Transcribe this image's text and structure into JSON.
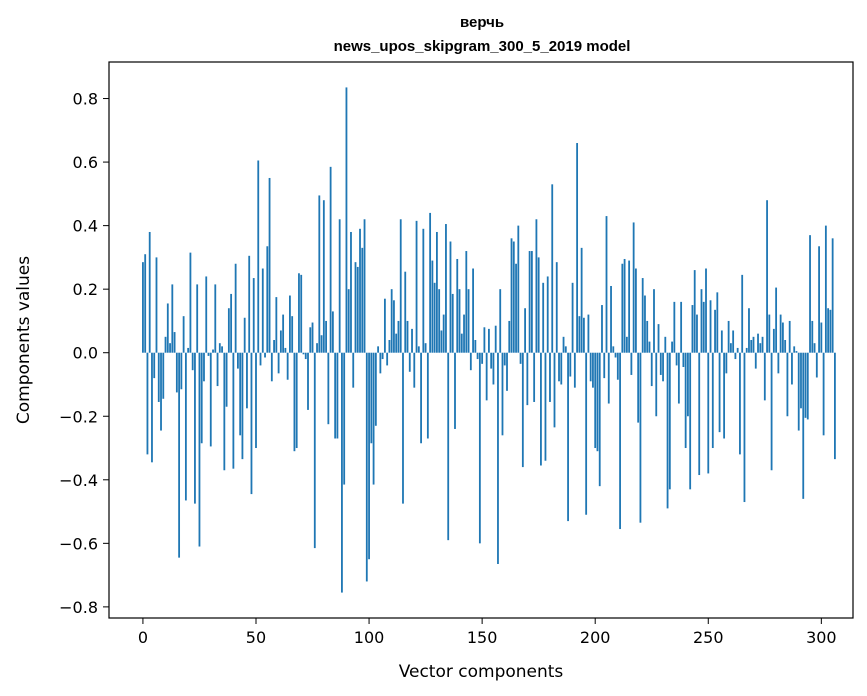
{
  "chart_data": {
    "type": "bar",
    "title": "верчь",
    "subtitle": "news_upos_skipgram_300_5_2019 model",
    "xlabel": "Vector components",
    "ylabel": "Components values",
    "xlim": [
      -15,
      314
    ],
    "ylim": [
      -0.835,
      0.915
    ],
    "xticks": [
      0,
      50,
      100,
      150,
      200,
      250,
      300
    ],
    "xtick_labels": [
      "0",
      "50",
      "100",
      "150",
      "200",
      "250",
      "300"
    ],
    "yticks": [
      -0.8,
      -0.6,
      -0.4,
      -0.2,
      0.0,
      0.2,
      0.4,
      0.6,
      0.8
    ],
    "ytick_labels": [
      "−0.8",
      "−0.6",
      "−0.4",
      "−0.2",
      "0.0",
      "0.2",
      "0.4",
      "0.6",
      "0.8"
    ],
    "grid": false,
    "bar_color": "#1f77b4",
    "values": [
      0.285,
      0.31,
      -0.32,
      0.38,
      -0.345,
      -0.08,
      0.3,
      -0.155,
      -0.245,
      -0.145,
      0.05,
      0.155,
      0.03,
      0.215,
      0.065,
      -0.125,
      -0.645,
      -0.115,
      0.115,
      -0.465,
      0.015,
      0.315,
      -0.055,
      -0.475,
      0.215,
      -0.61,
      -0.285,
      -0.09,
      0.24,
      -0.01,
      -0.295,
      0.01,
      0.215,
      -0.105,
      0.03,
      0.02,
      -0.37,
      -0.17,
      0.14,
      0.185,
      -0.365,
      0.28,
      -0.05,
      -0.26,
      -0.335,
      0.11,
      -0.175,
      0.305,
      -0.445,
      0.235,
      -0.3,
      0.605,
      -0.04,
      0.265,
      -0.015,
      0.335,
      0.55,
      -0.09,
      0.04,
      0.175,
      -0.065,
      0.07,
      0.12,
      0.015,
      -0.085,
      0.18,
      0.115,
      -0.31,
      -0.3,
      0.25,
      0.245,
      -0.005,
      -0.02,
      -0.18,
      0.08,
      0.095,
      -0.615,
      0.03,
      0.495,
      0.055,
      0.48,
      0.1,
      -0.225,
      0.585,
      0.13,
      -0.27,
      -0.27,
      0.42,
      -0.755,
      -0.415,
      0.835,
      0.2,
      0.38,
      -0.11,
      0.285,
      0.27,
      0.39,
      0.33,
      0.42,
      -0.72,
      -0.65,
      -0.285,
      -0.415,
      -0.23,
      0.02,
      -0.065,
      -0.02,
      0.17,
      -0.04,
      0.04,
      0.2,
      0.165,
      0.06,
      0.1,
      0.42,
      -0.475,
      0.255,
      0.1,
      -0.06,
      0.075,
      -0.11,
      0.415,
      0.02,
      -0.285,
      0.39,
      0.03,
      -0.27,
      0.44,
      0.29,
      0.22,
      0.38,
      0.2,
      0.07,
      0.12,
      0.405,
      -0.59,
      0.35,
      0.185,
      -0.24,
      0.295,
      0.2,
      0.06,
      0.12,
      0.32,
      0.2,
      -0.055,
      0.265,
      0.04,
      -0.02,
      -0.6,
      -0.035,
      0.08,
      -0.15,
      0.075,
      -0.05,
      -0.1,
      0.085,
      -0.665,
      0.2,
      -0.26,
      -0.04,
      -0.12,
      0.1,
      0.36,
      0.35,
      0.28,
      0.4,
      -0.035,
      -0.36,
      0.14,
      -0.165,
      0.32,
      0.32,
      -0.155,
      0.42,
      0.3,
      -0.355,
      0.22,
      -0.34,
      0.24,
      -0.155,
      0.53,
      -0.235,
      0.285,
      -0.09,
      -0.1,
      0.05,
      0.02,
      -0.53,
      -0.075,
      0.22,
      -0.11,
      0.66,
      0.115,
      0.33,
      0.11,
      -0.51,
      0.12,
      -0.09,
      -0.11,
      -0.3,
      -0.31,
      -0.42,
      0.15,
      -0.08,
      0.43,
      -0.16,
      0.21,
      0.02,
      -0.015,
      -0.085,
      -0.555,
      0.28,
      0.295,
      0.05,
      0.29,
      -0.07,
      0.41,
      0.265,
      -0.22,
      -0.535,
      0.235,
      0.18,
      0.1,
      0.035,
      -0.105,
      0.2,
      -0.2,
      0.09,
      -0.07,
      -0.09,
      0.05,
      -0.49,
      -0.43,
      0.035,
      0.16,
      -0.04,
      -0.16,
      0.16,
      -0.045,
      -0.3,
      -0.2,
      -0.43,
      0.15,
      0.26,
      0.12,
      -0.385,
      0.2,
      0.16,
      0.265,
      -0.38,
      0.165,
      -0.3,
      0.135,
      0.19,
      -0.25,
      0.07,
      -0.27,
      -0.065,
      0.1,
      0.03,
      0.07,
      -0.02,
      0.015,
      -0.32,
      0.245,
      -0.47,
      0.015,
      0.14,
      0.04,
      0.05,
      -0.05,
      0.06,
      0.03,
      0.05,
      -0.15,
      0.48,
      0.12,
      -0.37,
      0.075,
      0.205,
      -0.065,
      0.12,
      0.095,
      0.04,
      -0.2,
      0.1,
      -0.1,
      0.02,
      0.005,
      -0.245,
      -0.175,
      -0.46,
      -0.205,
      -0.21,
      0.37,
      0.1,
      0.03,
      -0.078,
      0.335,
      0.095,
      -0.26,
      0.4,
      0.14,
      0.135,
      0.36,
      -0.335
    ]
  }
}
